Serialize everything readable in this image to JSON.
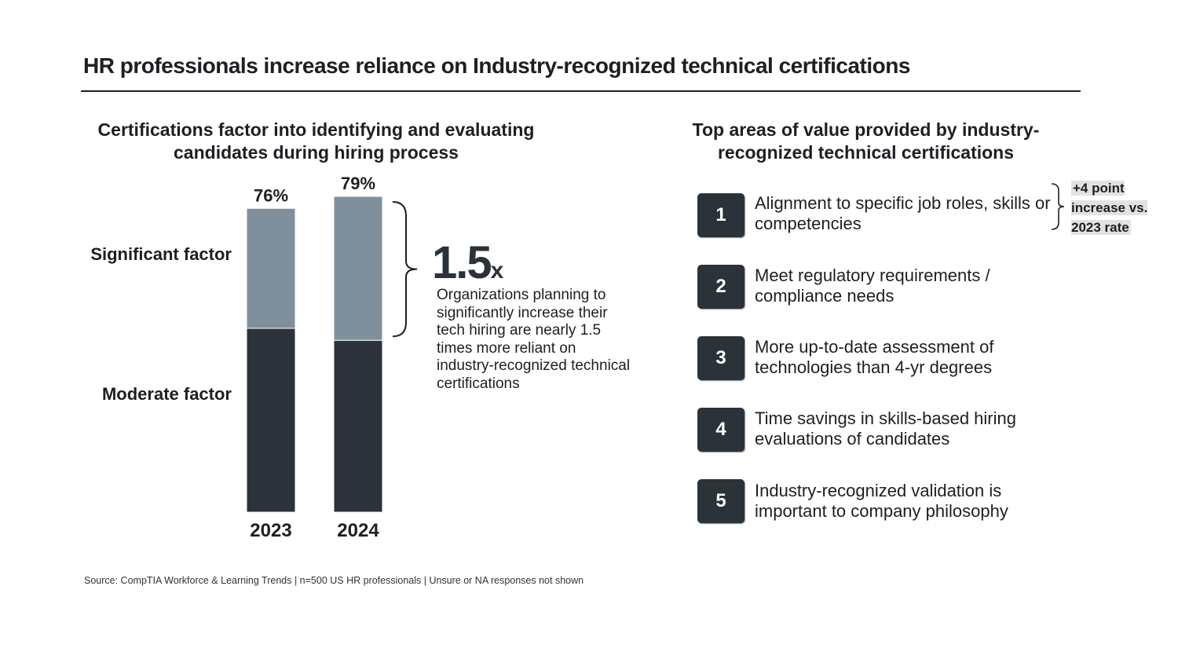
{
  "title": "HR professionals increase reliance on Industry-recognized technical certifications",
  "left_panel": {
    "subtitle": "Certifications factor into identifying and evaluating candidates during hiring process",
    "row_labels": {
      "significant": "Significant factor",
      "moderate": "Moderate factor"
    },
    "callout": {
      "value": "1.5",
      "unit": "x",
      "text": "Organizations planning to significantly increase their tech hiring are nearly 1.5 times more reliant on industry-recognized technical certifications"
    }
  },
  "chart_data": {
    "type": "bar",
    "stacked": true,
    "categories": [
      "2023",
      "2024"
    ],
    "series": [
      {
        "name": "Moderate factor",
        "values": [
          46,
          43
        ],
        "color": "#2c323a"
      },
      {
        "name": "Significant factor",
        "values": [
          30,
          36
        ],
        "color": "#7f8f9c"
      }
    ],
    "totals": [
      "76%",
      "79%"
    ],
    "ylim": [
      0,
      79
    ],
    "title": "",
    "xlabel": "",
    "ylabel": ""
  },
  "right_panel": {
    "subtitle": "Top areas of value provided by industry-recognized technical certifications",
    "items": [
      {
        "rank": "1",
        "text": "Alignment to specific job roles, skills or competencies"
      },
      {
        "rank": "2",
        "text": "Meet regulatory requirements / compliance needs"
      },
      {
        "rank": "3",
        "text": "More up-to-date assessment of technologies than 4-yr degrees"
      },
      {
        "rank": "4",
        "text": "Time savings in skills-based hiring evaluations of candidates"
      },
      {
        "rank": "5",
        "text": "Industry-recognized validation is important to company philosophy"
      }
    ],
    "note": "+4 point increase vs. 2023 rate"
  },
  "source": "Source: CompTIA Workforce & Learning Trends | n=500 US HR professionals | Unsure or NA responses not shown",
  "colors": {
    "dark": "#2c323a",
    "slate": "#7f8f9c",
    "text": "#1c1f23",
    "badge_bg": "#e2e2e2"
  }
}
